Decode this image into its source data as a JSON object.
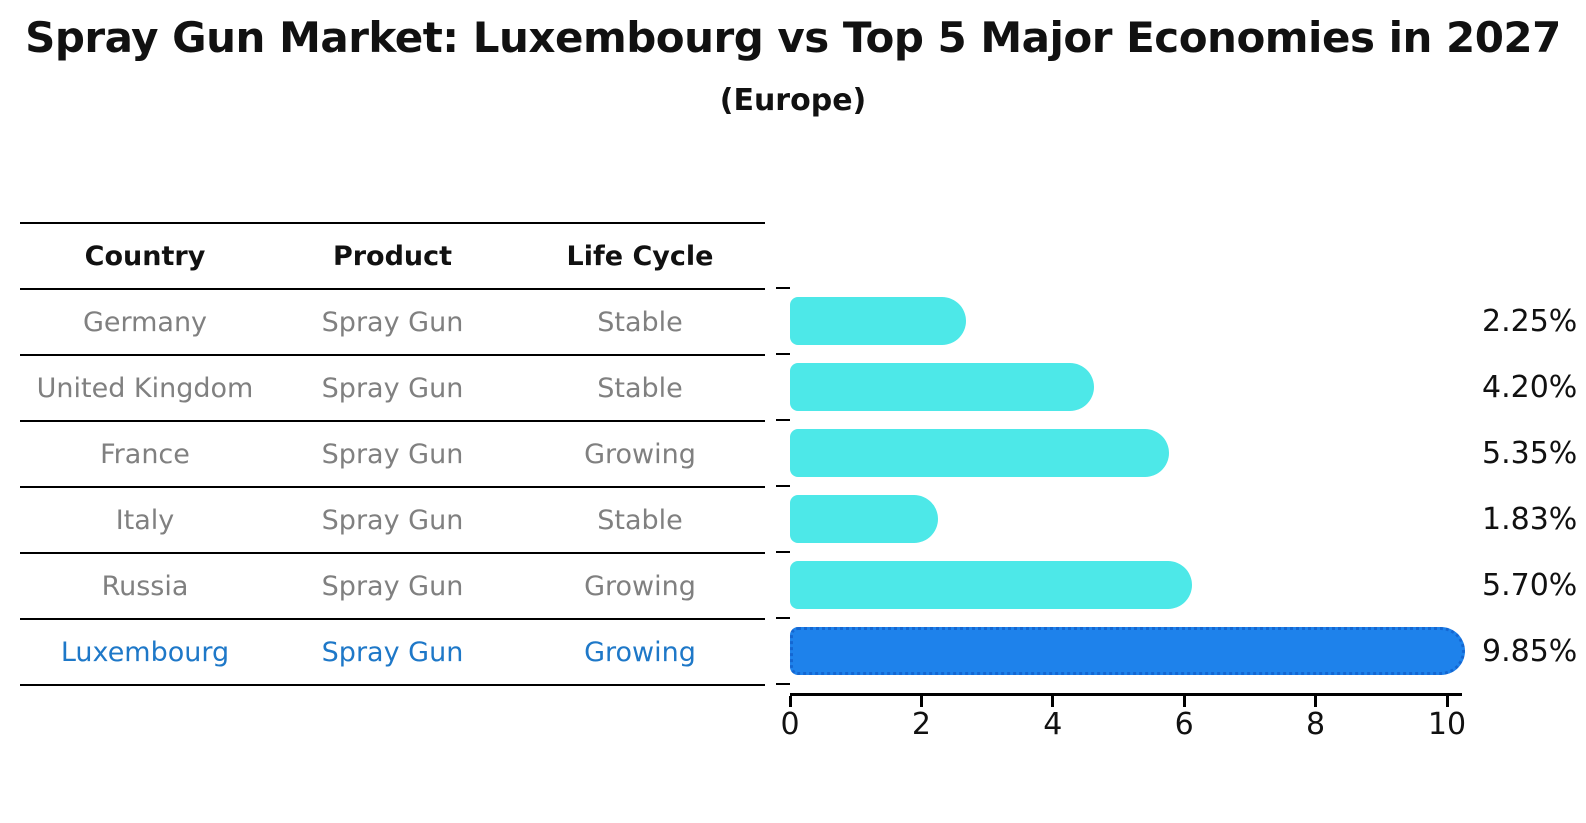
{
  "title": "Spray Gun Market: Luxembourg vs Top 5 Major Economies in 2027",
  "subtitle": "(Europe)",
  "table": {
    "columns": [
      "Country",
      "Product",
      "Life Cycle"
    ],
    "rows": [
      {
        "country": "Germany",
        "product": "Spray Gun",
        "life_cycle": "Stable",
        "highlight": false
      },
      {
        "country": "United Kingdom",
        "product": "Spray Gun",
        "life_cycle": "Stable",
        "highlight": false
      },
      {
        "country": "France",
        "product": "Spray Gun",
        "life_cycle": "Growing",
        "highlight": false
      },
      {
        "country": "Italy",
        "product": "Spray Gun",
        "life_cycle": "Stable",
        "highlight": false
      },
      {
        "country": "Russia",
        "product": "Spray Gun",
        "life_cycle": "Growing",
        "highlight": false
      },
      {
        "country": "Luxembourg",
        "product": "Spray Gun",
        "life_cycle": "Growing",
        "highlight": true
      }
    ]
  },
  "chart_data": {
    "type": "bar",
    "orientation": "horizontal",
    "title": "Spray Gun Market: Luxembourg vs Top 5 Major Economies in 2027",
    "subtitle": "(Europe)",
    "categories": [
      "Germany",
      "United Kingdom",
      "France",
      "Italy",
      "Russia",
      "Luxembourg"
    ],
    "values": [
      2.25,
      4.2,
      5.35,
      1.83,
      5.7,
      9.85
    ],
    "value_labels": [
      "2.25%",
      "4.20%",
      "5.35%",
      "1.83%",
      "5.70%",
      "9.85%"
    ],
    "x_ticks": [
      0,
      2,
      4,
      6,
      8,
      10
    ],
    "xlim": [
      0,
      10.3
    ],
    "xlabel": "",
    "ylabel": "",
    "grid": false,
    "legend": false,
    "highlight_index": 5,
    "bar_color": "#4DE8E8",
    "highlight_color": "#1E82EB",
    "highlight_border_color": "#1467D2"
  },
  "colors": {
    "row_text": "#808080",
    "highlight_text": "#1E78C8",
    "header_text": "#111111",
    "value_text": "#111111",
    "axis": "#000000"
  }
}
